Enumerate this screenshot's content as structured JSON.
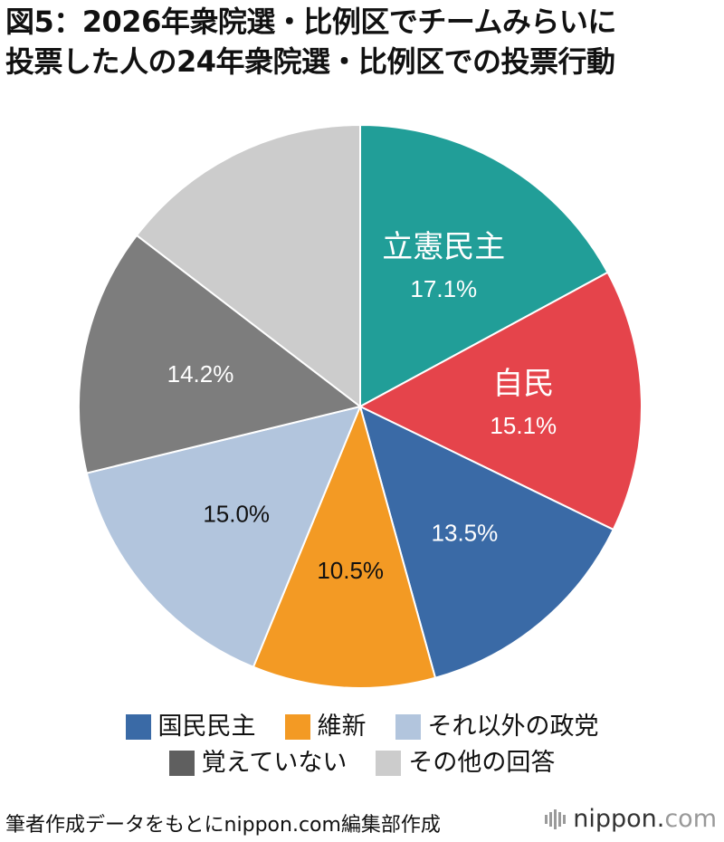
{
  "title": {
    "line1": "図5：2026年衆院選・比例区でチームみらいに",
    "line2": "投票した人の24年衆院選・比例区での投票行動"
  },
  "chart_data": {
    "type": "pie",
    "start": "12 o'clock, clockwise",
    "slices": [
      {
        "label": "立憲民主",
        "value": 17.1,
        "value_label": "17.1%",
        "color": "#219e98",
        "text_color": "#ffffff",
        "show_name": true,
        "legend": false
      },
      {
        "label": "自民",
        "value": 15.1,
        "value_label": "15.1%",
        "color": "#e5444b",
        "text_color": "#ffffff",
        "show_name": true,
        "legend": false
      },
      {
        "label": "国民民主",
        "value": 13.5,
        "value_label": "13.5%",
        "color": "#3a6aa6",
        "text_color": "#ffffff",
        "show_name": false,
        "legend": true
      },
      {
        "label": "維新",
        "value": 10.5,
        "value_label": "10.5%",
        "color": "#f39a24",
        "text_color": "#111111",
        "show_name": false,
        "legend": true
      },
      {
        "label": "それ以外の政党",
        "value": 15.0,
        "value_label": "15.0%",
        "color": "#b2c5dd",
        "text_color": "#111111",
        "show_name": false,
        "legend": true
      },
      {
        "label": "覚えていない",
        "value": 14.2,
        "value_label": "14.2%",
        "color": "#7d7d7d",
        "text_color": "#ffffff",
        "show_name": false,
        "legend": true
      },
      {
        "label": "その他の回答",
        "value": 14.6,
        "value_label": "",
        "color": "#cccccc",
        "text_color": "#111111",
        "show_name": false,
        "legend": true
      }
    ]
  },
  "legend": {
    "rows": [
      [
        {
          "label": "国民民主",
          "color": "#3a6aa6"
        },
        {
          "label": "維新",
          "color": "#f39a24"
        },
        {
          "label": "それ以外の政党",
          "color": "#b2c5dd"
        }
      ],
      [
        {
          "label": "覚えていない",
          "color": "#5f5f5f"
        },
        {
          "label": "その他の回答",
          "color": "#cccccc"
        }
      ]
    ]
  },
  "footer": {
    "source": "筆者作成データをもとにnippon.com編集部作成",
    "brand_main": "nippon",
    "brand_dot": ".",
    "brand_tld": "com"
  }
}
